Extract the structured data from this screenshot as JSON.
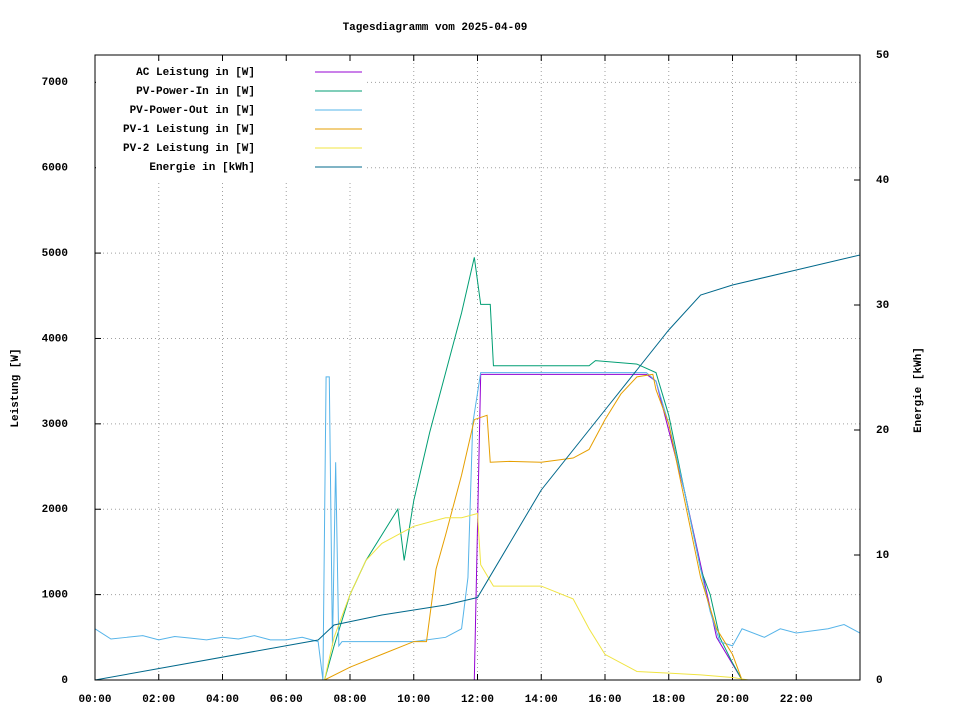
{
  "chart_data": {
    "type": "line",
    "title": "Tagesdiagramm vom 2025-04-09",
    "y_label": "Leistung [W]",
    "y2_label": "Energie [kWh]",
    "xlim": [
      0,
      24
    ],
    "xticks": [
      {
        "value": 0,
        "label": "00:00"
      },
      {
        "value": 2,
        "label": "02:00"
      },
      {
        "value": 4,
        "label": "04:00"
      },
      {
        "value": 6,
        "label": "06:00"
      },
      {
        "value": 8,
        "label": "08:00"
      },
      {
        "value": 10,
        "label": "10:00"
      },
      {
        "value": 12,
        "label": "12:00"
      },
      {
        "value": 14,
        "label": "14:00"
      },
      {
        "value": 16,
        "label": "16:00"
      },
      {
        "value": 18,
        "label": "18:00"
      },
      {
        "value": 20,
        "label": "20:00"
      },
      {
        "value": 22,
        "label": "22:00"
      }
    ],
    "ylim": [
      0,
      7320
    ],
    "yticks": [
      0,
      1000,
      2000,
      3000,
      4000,
      5000,
      6000,
      7000
    ],
    "y2lim": [
      0,
      50
    ],
    "y2ticks": [
      0,
      10,
      20,
      30,
      40,
      50
    ],
    "grid": true,
    "legend": "top-left",
    "series": [
      {
        "name": "AC Leistung in [W]",
        "color": "#9400d3",
        "x": [
          0,
          11.9,
          12.1,
          17.3,
          17.6,
          18.5,
          19.5,
          20.3,
          24
        ],
        "values": [
          0,
          0,
          3580,
          3580,
          3500,
          2200,
          500,
          0,
          0
        ]
      },
      {
        "name": "PV-Power-In in [W]",
        "color": "#009e73",
        "x": [
          0,
          7.2,
          7.5,
          8,
          8.5,
          9,
          9.5,
          9.7,
          10,
          10.5,
          11,
          11.5,
          11.9,
          12.1,
          12.4,
          12.5,
          14,
          15.5,
          15.7,
          17,
          17.6,
          18,
          18.5,
          19,
          19.3,
          19.6,
          20,
          20.3,
          24
        ],
        "values": [
          0,
          0,
          400,
          1000,
          1400,
          1700,
          2000,
          1400,
          2100,
          2900,
          3600,
          4300,
          4950,
          4400,
          4400,
          3680,
          3680,
          3680,
          3740,
          3700,
          3600,
          3100,
          2200,
          1300,
          1000,
          500,
          200,
          0,
          0
        ]
      },
      {
        "name": "PV-Power-Out in [W]",
        "color": "#56b4e9",
        "x": [
          0,
          0.5,
          1,
          1.5,
          2,
          2.5,
          3,
          3.5,
          4,
          4.5,
          5,
          5.5,
          6,
          6.5,
          7,
          7.15,
          7.25,
          7.35,
          7.45,
          7.55,
          7.65,
          7.75,
          8,
          9,
          10,
          11,
          11.5,
          11.7,
          11.85,
          12.1,
          14,
          16,
          17.3,
          17.6,
          18,
          18.5,
          19,
          19.3,
          19.6,
          20,
          20.3,
          21,
          21.5,
          22,
          23,
          23.5,
          24
        ],
        "values": [
          600,
          480,
          500,
          520,
          470,
          510,
          490,
          470,
          500,
          480,
          520,
          470,
          470,
          500,
          450,
          0,
          3550,
          3550,
          400,
          2550,
          400,
          450,
          450,
          450,
          450,
          500,
          600,
          1200,
          3000,
          3600,
          3600,
          3600,
          3600,
          3500,
          3000,
          2200,
          1300,
          800,
          450,
          400,
          600,
          500,
          600,
          550,
          600,
          650,
          550
        ]
      },
      {
        "name": "PV-1 Leistung in [W]",
        "color": "#e69f00",
        "x": [
          0,
          7.2,
          8,
          9,
          10,
          10.4,
          10.7,
          11,
          11.5,
          11.9,
          12.3,
          12.4,
          13,
          14,
          15,
          15.5,
          16,
          16.5,
          17,
          17.5,
          17.6,
          18,
          18.5,
          19,
          19.5,
          20,
          20.3,
          24
        ],
        "values": [
          0,
          0,
          150,
          300,
          450,
          450,
          1300,
          1700,
          2400,
          3050,
          3100,
          2550,
          2560,
          2550,
          2600,
          2700,
          3050,
          3350,
          3550,
          3580,
          3400,
          3000,
          2100,
          1200,
          600,
          300,
          0,
          0
        ]
      },
      {
        "name": "PV-2 Leistung in [W]",
        "color": "#f0e442",
        "x": [
          0,
          7.2,
          7.5,
          8,
          8.5,
          9,
          9.5,
          10,
          10.5,
          11,
          11.5,
          12,
          12.1,
          12.5,
          14,
          15,
          15.5,
          16,
          17,
          18,
          19,
          20,
          20.5,
          24
        ],
        "values": [
          0,
          0,
          500,
          1000,
          1400,
          1600,
          1700,
          1800,
          1850,
          1900,
          1900,
          1950,
          1350,
          1100,
          1100,
          950,
          600,
          300,
          100,
          80,
          60,
          30,
          0,
          0
        ]
      },
      {
        "name": "Energie in [kWh]",
        "color": "#00688b",
        "axis": "y2",
        "x": [
          0,
          7,
          7.5,
          9,
          11,
          12,
          14,
          16,
          17,
          18,
          19,
          20,
          22,
          24
        ],
        "values": [
          0,
          3.2,
          4.4,
          5.2,
          6,
          6.6,
          15.2,
          21.6,
          24.8,
          28,
          30.8,
          31.6,
          32.8,
          34
        ]
      }
    ]
  }
}
